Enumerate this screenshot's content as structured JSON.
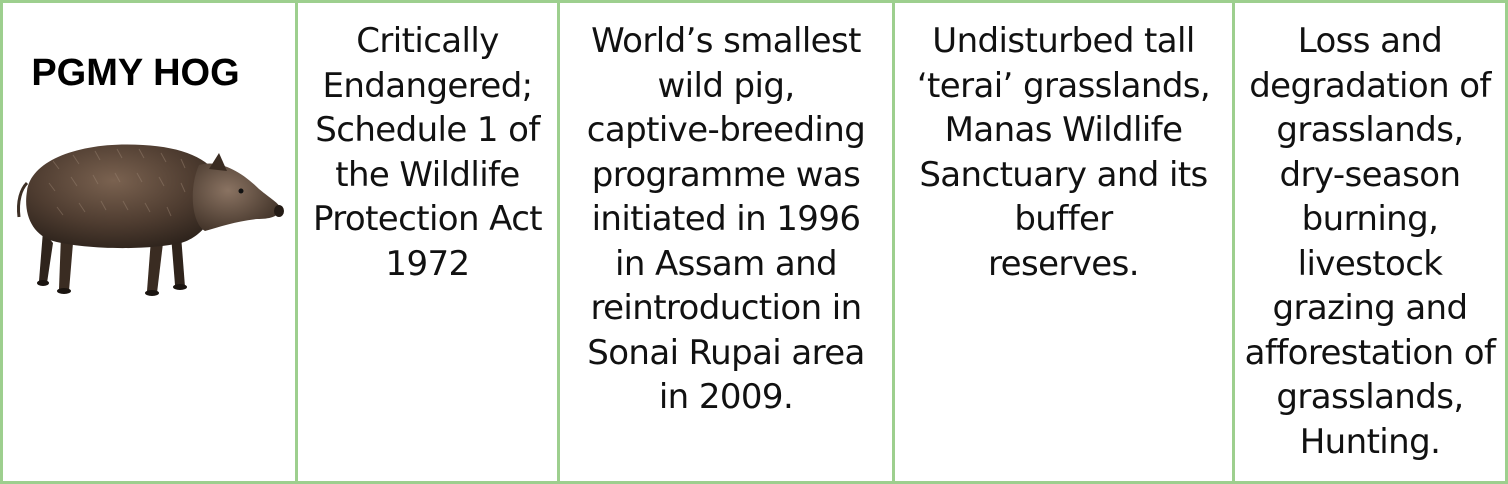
{
  "animal": {
    "name": "PGMY HOG",
    "image_icon": "pygmy-hog-illustration"
  },
  "columns": {
    "status": "Critically\nEndangered;\nSchedule 1 of\nthe Wildlife\nProtection Act\n1972",
    "features": "World’s smallest\nwild pig,\ncaptive-breeding\nprogramme was\ninitiated in 1996\nin Assam and\nreintroduction in\nSonai Rupai area\nin 2009.",
    "habitat": "Undisturbed tall\n‘terai’ grasslands,\nManas Wildlife\nSanctuary and its\nbuffer\nreserves.",
    "threats": "Loss and\ndegradation of\ngrasslands,\ndry-season\nburning,\nlivestock\ngrazing and\nafforestation of\ngrasslands,\nHunting."
  },
  "colors": {
    "border": "#9dcf8e",
    "text": "#111111"
  }
}
